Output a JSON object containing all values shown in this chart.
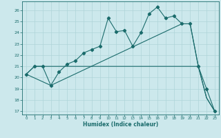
{
  "xlabel": "Humidex (Indice chaleur)",
  "bg_color": "#cce8ec",
  "grid_color": "#aed4d8",
  "line_color": "#1a6b6b",
  "xlim": [
    -0.5,
    23.5
  ],
  "ylim": [
    16.7,
    26.8
  ],
  "xticks": [
    0,
    1,
    2,
    3,
    4,
    5,
    6,
    7,
    8,
    9,
    10,
    11,
    12,
    13,
    14,
    15,
    16,
    17,
    18,
    19,
    20,
    21,
    22,
    23
  ],
  "yticks": [
    17,
    18,
    19,
    20,
    21,
    22,
    23,
    24,
    25,
    26
  ],
  "line_main_x": [
    0,
    1,
    2,
    3,
    4,
    5,
    6,
    7,
    8,
    9,
    10,
    11,
    12,
    13,
    14,
    15,
    16,
    17,
    18,
    19,
    20,
    21,
    22,
    23
  ],
  "line_main_y": [
    20.3,
    21.0,
    21.0,
    19.3,
    20.5,
    21.2,
    21.5,
    22.2,
    22.5,
    22.8,
    25.3,
    24.1,
    24.2,
    22.8,
    24.0,
    25.7,
    26.3,
    25.3,
    25.5,
    24.8,
    24.8,
    21.0,
    19.0,
    17.0
  ],
  "line_flat_x": [
    0,
    1,
    2,
    3,
    4,
    5,
    6,
    7,
    8,
    9,
    10,
    11,
    12,
    13,
    14,
    15,
    16,
    17,
    18,
    19,
    20,
    21,
    22,
    23
  ],
  "line_flat_y": [
    20.3,
    21.0,
    21.0,
    21.0,
    21.0,
    21.0,
    21.0,
    21.0,
    21.0,
    21.0,
    21.0,
    21.0,
    21.0,
    21.0,
    21.0,
    21.0,
    21.0,
    21.0,
    21.0,
    21.0,
    21.0,
    21.0,
    18.2,
    17.0
  ],
  "line_diag_x": [
    0,
    3,
    19,
    20,
    21,
    22,
    23
  ],
  "line_diag_y": [
    20.3,
    19.3,
    24.8,
    24.8,
    21.0,
    18.2,
    17.0
  ]
}
